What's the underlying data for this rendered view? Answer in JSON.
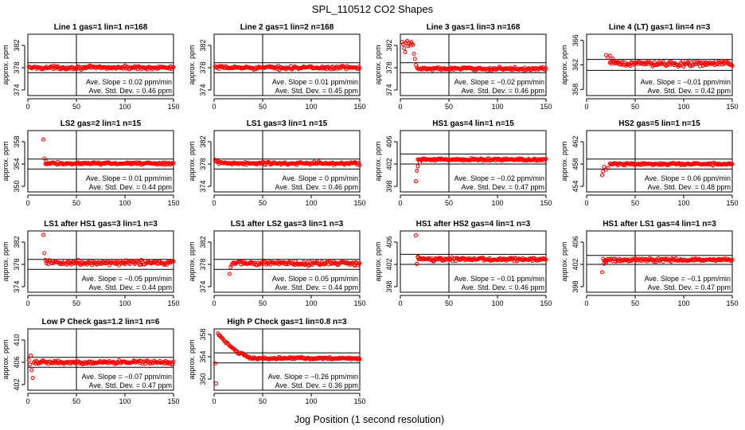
{
  "page_title": "SPL_110512  CO2 Shapes",
  "shared_xlabel": "Jog Position (1 second resolution)",
  "colors": {
    "points": "#ff0000",
    "axes": "#000000",
    "background": "#ffffff"
  },
  "chart_data": [
    {
      "type": "scatter",
      "title": "Line 1 gas=1 lin=1 n=168",
      "ylabel": "approx. ppm",
      "xlim": [
        0,
        150
      ],
      "ylim": [
        373,
        384
      ],
      "xticks": [
        0,
        50,
        100,
        150
      ],
      "yticks": [
        374,
        378,
        382
      ],
      "hlines": [
        378.9,
        377.1
      ],
      "vline": 50,
      "grid": false,
      "x_start": 1,
      "x_end": 150,
      "base": 378,
      "noise": 0.2,
      "shape": [],
      "outliers": [],
      "slope_text": "Ave. Slope =  0.02  ppm/min",
      "std_text": "Ave. Std. Dev. =  0.46  ppm"
    },
    {
      "type": "scatter",
      "title": "Line 2 gas=1 lin=2 n=168",
      "ylabel": "approx. ppm",
      "xlim": [
        0,
        150
      ],
      "ylim": [
        373,
        384
      ],
      "xticks": [
        0,
        50,
        100,
        150
      ],
      "yticks": [
        374,
        378,
        382
      ],
      "hlines": [
        378.9,
        377.1
      ],
      "vline": 50,
      "grid": false,
      "x_start": 1,
      "x_end": 150,
      "base": 378,
      "noise": 0.2,
      "shape": [],
      "outliers": [],
      "slope_text": "Ave. Slope =  0.01  ppm/min",
      "std_text": "Ave. Std. Dev. =  0.45  ppm"
    },
    {
      "type": "scatter",
      "title": "Line 3 gas=1 lin=3 n=168",
      "ylabel": "approx. ppm",
      "xlim": [
        0,
        150
      ],
      "ylim": [
        373,
        384
      ],
      "xticks": [
        0,
        50,
        100,
        150
      ],
      "yticks": [
        374,
        378,
        382
      ],
      "hlines": [
        378.9,
        377.1
      ],
      "vline": 50,
      "grid": false,
      "x_start": 18,
      "x_end": 150,
      "base": 377.8,
      "noise": 0.2,
      "shape": [],
      "outliers": [
        [
          2,
          382.6
        ],
        [
          3,
          382.2
        ],
        [
          4,
          381.5
        ],
        [
          5,
          380.8
        ],
        [
          6,
          382.5
        ],
        [
          7,
          382.8
        ],
        [
          8,
          381.9
        ],
        [
          9,
          382.4
        ],
        [
          10,
          382
        ],
        [
          11,
          382.6
        ],
        [
          12,
          382.3
        ],
        [
          13,
          382.1
        ],
        [
          14,
          380.5
        ],
        [
          15,
          379.6
        ],
        [
          16,
          378.5
        ],
        [
          17,
          378
        ]
      ],
      "slope_text": "Ave. Slope =  −0.02  ppm/min",
      "std_text": "Ave. Std. Dev. =  0.46  ppm"
    },
    {
      "type": "scatter",
      "title": "Line 4 (LT) gas=1 lin=4 n=3",
      "ylabel": "approx. ppm",
      "xlim": [
        0,
        150
      ],
      "ylim": [
        357,
        367
      ],
      "xticks": [
        0,
        50,
        100,
        150
      ],
      "yticks": [
        358,
        362,
        366
      ],
      "hlines": [
        362.9,
        361.1
      ],
      "vline": 50,
      "grid": false,
      "x_start": 24,
      "x_end": 150,
      "base": 362.2,
      "noise": 0.3,
      "shape": [],
      "outliers": [
        [
          20,
          363.6
        ],
        [
          22,
          363.2
        ],
        [
          24,
          363.5
        ],
        [
          27,
          363
        ],
        [
          31,
          362.6
        ]
      ],
      "slope_text": "Ave. Slope =  −0.01  ppm/min",
      "std_text": "Ave. Std. Dev. =  0.42  ppm"
    },
    {
      "type": "scatter",
      "title": "LS2 gas=2 lin=1 n=15",
      "ylabel": "approx. ppm",
      "xlim": [
        0,
        150
      ],
      "ylim": [
        349,
        360
      ],
      "xticks": [
        0,
        50,
        100,
        150
      ],
      "yticks": [
        350,
        354,
        358
      ],
      "hlines": [
        354.9,
        353.1
      ],
      "vline": 50,
      "grid": false,
      "x_start": 18,
      "x_end": 150,
      "base": 354.1,
      "noise": 0.15,
      "shape": [],
      "outliers": [
        [
          16,
          358.4
        ],
        [
          17,
          355
        ],
        [
          19,
          354.5
        ]
      ],
      "slope_text": "Ave. Slope =  0.01  ppm/min",
      "std_text": "Ave. Std. Dev. =  0.44  ppm"
    },
    {
      "type": "scatter",
      "title": "LS1 gas=3 lin=1 n=15",
      "ylabel": "approx. ppm",
      "xlim": [
        0,
        150
      ],
      "ylim": [
        373,
        384
      ],
      "xticks": [
        0,
        50,
        100,
        150
      ],
      "yticks": [
        374,
        378,
        382
      ],
      "hlines": [
        378.9,
        377.1
      ],
      "vline": 50,
      "grid": false,
      "x_start": 1,
      "x_end": 150,
      "base": 378.1,
      "noise": 0.2,
      "shape": [
        [
          1,
          12,
          0.4
        ]
      ],
      "outliers": [],
      "slope_text": "Ave. Slope =  0  ppm/min",
      "std_text": "Ave. Std. Dev. =  0.46  ppm"
    },
    {
      "type": "scatter",
      "title": "HS1 gas=4 lin=1 n=15",
      "ylabel": "approx. ppm",
      "xlim": [
        0,
        150
      ],
      "ylim": [
        397,
        408
      ],
      "xticks": [
        0,
        50,
        100,
        150
      ],
      "yticks": [
        398,
        402,
        406
      ],
      "hlines": [
        403.8,
        402
      ],
      "vline": 50,
      "grid": false,
      "x_start": 18,
      "x_end": 150,
      "base": 402.8,
      "noise": 0.15,
      "shape": [],
      "outliers": [
        [
          16,
          398.9
        ],
        [
          17,
          400.8
        ],
        [
          18,
          401.6
        ],
        [
          20,
          402.3
        ]
      ],
      "slope_text": "Ave. Slope =  −0.02  ppm/min",
      "std_text": "Ave. Std. Dev. =  0.47  ppm"
    },
    {
      "type": "scatter",
      "title": "HS2 gas=5 lin=1 n=15",
      "ylabel": "approx. ppm",
      "xlim": [
        0,
        150
      ],
      "ylim": [
        453,
        464
      ],
      "xticks": [
        0,
        50,
        100,
        150
      ],
      "yticks": [
        454,
        458,
        462
      ],
      "hlines": [
        458.9,
        457.1
      ],
      "vline": 50,
      "grid": false,
      "x_start": 24,
      "x_end": 150,
      "base": 458,
      "noise": 0.15,
      "shape": [],
      "outliers": [
        [
          16,
          456
        ],
        [
          17,
          456.7
        ],
        [
          18,
          457.5
        ],
        [
          20,
          457
        ],
        [
          22,
          457.3
        ]
      ],
      "slope_text": "Ave. Slope =  0.06  ppm/min",
      "std_text": "Ave. Std. Dev. =  0.48  ppm"
    },
    {
      "type": "scatter",
      "title": "LS1 after HS1 gas=3 lin=1 n=3",
      "ylabel": "approx. ppm",
      "xlim": [
        0,
        150
      ],
      "ylim": [
        373,
        384
      ],
      "xticks": [
        0,
        50,
        100,
        150
      ],
      "yticks": [
        374,
        378,
        382
      ],
      "hlines": [
        378.9,
        377.1
      ],
      "vline": 50,
      "grid": false,
      "x_start": 20,
      "x_end": 150,
      "base": 378.3,
      "noise": 0.3,
      "shape": [],
      "outliers": [
        [
          16,
          383.3
        ],
        [
          17,
          380
        ],
        [
          18,
          378.8
        ],
        [
          19,
          378.2
        ]
      ],
      "slope_text": "Ave. Slope =  −0.05  ppm/min",
      "std_text": "Ave. Std. Dev. =  0.44  ppm"
    },
    {
      "type": "scatter",
      "title": "LS1 after LS2 gas=3 lin=1 n=3",
      "ylabel": "approx. ppm",
      "xlim": [
        0,
        150
      ],
      "ylim": [
        373,
        384
      ],
      "xticks": [
        0,
        50,
        100,
        150
      ],
      "yticks": [
        374,
        378,
        382
      ],
      "hlines": [
        378.9,
        377.1
      ],
      "vline": 50,
      "grid": false,
      "x_start": 19,
      "x_end": 150,
      "base": 378.2,
      "noise": 0.3,
      "shape": [],
      "outliers": [
        [
          16,
          376.3
        ],
        [
          17,
          377.5
        ],
        [
          18,
          377.9
        ]
      ],
      "slope_text": "Ave. Slope =  0.05  ppm/min",
      "std_text": "Ave. Std. Dev. =  0.44  ppm"
    },
    {
      "type": "scatter",
      "title": "HS1 after HS2 gas=4 lin=1 n=3",
      "ylabel": "approx. ppm",
      "xlim": [
        0,
        150
      ],
      "ylim": [
        397,
        408
      ],
      "xticks": [
        0,
        50,
        100,
        150
      ],
      "yticks": [
        398,
        402,
        406
      ],
      "hlines": [
        403.8,
        402
      ],
      "vline": 50,
      "grid": false,
      "x_start": 18,
      "x_end": 150,
      "base": 402.9,
      "noise": 0.2,
      "shape": [],
      "outliers": [
        [
          16,
          407.2
        ],
        [
          17,
          402.1
        ],
        [
          18,
          403.4
        ]
      ],
      "slope_text": "Ave. Slope =  −0.01  ppm/min",
      "std_text": "Ave. Std. Dev. =  0.46  ppm"
    },
    {
      "type": "scatter",
      "title": "HS1 after LS1 gas=4 lin=1 n=3",
      "ylabel": "approx. ppm",
      "xlim": [
        0,
        150
      ],
      "ylim": [
        397,
        408
      ],
      "xticks": [
        0,
        50,
        100,
        150
      ],
      "yticks": [
        398,
        402,
        406
      ],
      "hlines": [
        403.6,
        402
      ],
      "vline": 50,
      "grid": false,
      "x_start": 18,
      "x_end": 150,
      "base": 402.8,
      "noise": 0.2,
      "shape": [],
      "outliers": [
        [
          16,
          400.6
        ],
        [
          17,
          403
        ],
        [
          18,
          402.1
        ],
        [
          20,
          402.3
        ]
      ],
      "slope_text": "Ave. Slope =  −0.1  ppm/min",
      "std_text": "Ave. Std. Dev. =  0.47  ppm"
    },
    {
      "type": "scatter",
      "title": "Low P Check gas=1.2 lin=1 n=6",
      "ylabel": "approx. ppm",
      "xlim": [
        0,
        150
      ],
      "ylim": [
        401,
        412
      ],
      "xticks": [
        0,
        50,
        100,
        150
      ],
      "yticks": [
        402,
        406,
        410
      ],
      "hlines": [
        406.9,
        405.1
      ],
      "vline": 50,
      "grid": false,
      "x_start": 6,
      "x_end": 150,
      "base": 406,
      "noise": 0.2,
      "shape": [],
      "outliers": [
        [
          1,
          406.4
        ],
        [
          2,
          405.6
        ],
        [
          3,
          407.2
        ],
        [
          4,
          404.6
        ],
        [
          5,
          403.2
        ]
      ],
      "slope_text": "Ave. Slope =  −0.07  ppm/min",
      "std_text": "Ave. Std. Dev. =  0.47  ppm"
    },
    {
      "type": "scatter",
      "title": "High P Check gas=1 lin=0.8 n=3",
      "ylabel": "approx. ppm",
      "xlim": [
        0,
        150
      ],
      "ylim": [
        348,
        359
      ],
      "xticks": [
        0,
        50,
        100,
        150
      ],
      "yticks": [
        350,
        354,
        358
      ],
      "hlines": [
        354.7,
        352.9
      ],
      "vline": 50,
      "grid": false,
      "x_start": 4,
      "x_end": 150,
      "base": 353.7,
      "noise": 0.15,
      "shape": [
        [
          4,
          45,
          4.5
        ]
      ],
      "outliers": [
        [
          1,
          352.8
        ],
        [
          2,
          349.2
        ]
      ],
      "slope_text": "Ave. Slope =  −0.26  ppm/min",
      "std_text": "Ave. Std. Dev. =  0.36  ppm"
    }
  ]
}
